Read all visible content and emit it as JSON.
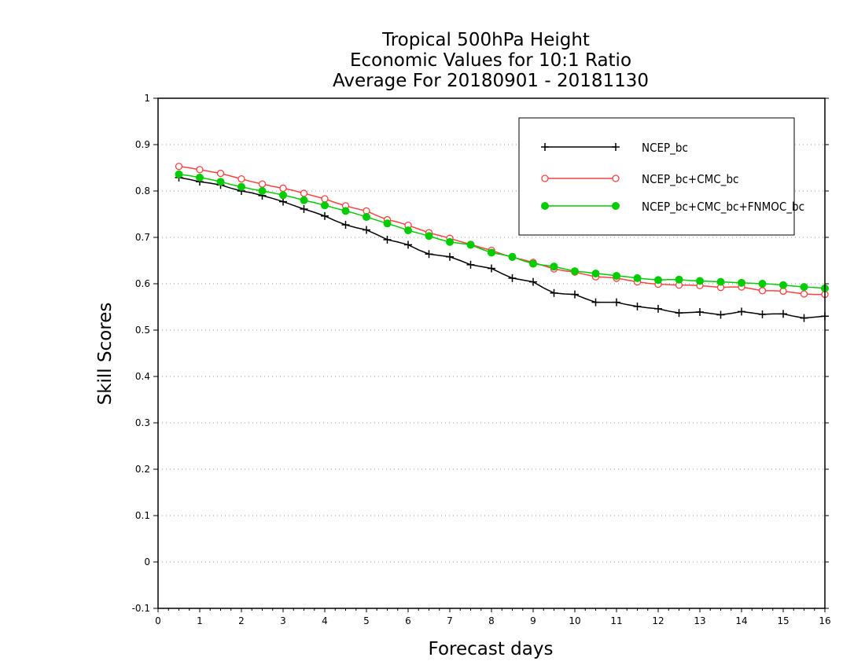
{
  "chart_data": {
    "type": "line",
    "title_lines": [
      "Tropical 500hPa Height",
      "Economic Values for 10:1 Ratio",
      "Average For 20180901 - 20181130"
    ],
    "xlabel": "Forecast days",
    "ylabel": "Skill Scores",
    "xlim": [
      0,
      16
    ],
    "ylim": [
      -0.1,
      1
    ],
    "x_ticks": [
      0,
      1,
      2,
      3,
      4,
      5,
      6,
      7,
      8,
      9,
      10,
      11,
      12,
      13,
      14,
      15,
      16
    ],
    "x_tick_labels": [
      "0",
      "1",
      "2",
      "3",
      "4",
      "5",
      "6",
      "7",
      "8",
      "9",
      "10",
      "11",
      "12",
      "13",
      "14",
      "15",
      "16"
    ],
    "y_ticks": [
      -0.1,
      0,
      0.1,
      0.2,
      0.3,
      0.4,
      0.5,
      0.6,
      0.7,
      0.8,
      0.9,
      1
    ],
    "y_tick_labels": [
      "-0.1",
      "0",
      "0.1",
      "0.2",
      "0.3",
      "0.4",
      "0.5",
      "0.6",
      "0.7",
      "0.8",
      "0.9",
      "1"
    ],
    "grid": "horizontal dotted",
    "legend_position": "top-right",
    "x": [
      0.5,
      0.75,
      1.0,
      1.25,
      1.5,
      1.75,
      2.0,
      2.25,
      2.5,
      2.75,
      3.0,
      3.25,
      3.5,
      3.75,
      4.0,
      4.25,
      4.5,
      4.75,
      5.0,
      5.25,
      5.5,
      5.75,
      6.0,
      6.25,
      6.5,
      6.75,
      7.0,
      7.25,
      7.5,
      7.75,
      8.0,
      8.25,
      8.5,
      8.75,
      9.0,
      9.25,
      9.5,
      9.75,
      10.0,
      10.25,
      10.5,
      10.75,
      11.0,
      11.25,
      11.5,
      11.75,
      12.0,
      12.25,
      12.5,
      12.75,
      13.0,
      13.25,
      13.5,
      13.75,
      14.0,
      14.25,
      14.5,
      14.75,
      15.0,
      15.25,
      15.5,
      15.75,
      16.0
    ],
    "series": [
      {
        "name": "NCEP_bc",
        "color": "#000000",
        "marker": "plus",
        "values": [
          0.829,
          0.825,
          0.82,
          0.817,
          0.813,
          0.806,
          0.8,
          0.796,
          0.79,
          0.784,
          0.777,
          0.769,
          0.761,
          0.754,
          0.746,
          0.736,
          0.727,
          0.721,
          0.716,
          0.706,
          0.695,
          0.69,
          0.684,
          0.673,
          0.664,
          0.661,
          0.658,
          0.65,
          0.641,
          0.637,
          0.633,
          0.622,
          0.612,
          0.608,
          0.604,
          0.591,
          0.58,
          0.578,
          0.577,
          0.568,
          0.56,
          0.56,
          0.56,
          0.555,
          0.551,
          0.548,
          0.546,
          0.541,
          0.537,
          0.538,
          0.539,
          0.536,
          0.533,
          0.536,
          0.54,
          0.537,
          0.534,
          0.535,
          0.535,
          0.53,
          0.526,
          0.528,
          0.53
        ]
      },
      {
        "name": "NCEP_bc+CMC_bc",
        "color": "#ff4040",
        "marker": "open-circle",
        "values": [
          0.853,
          0.85,
          0.846,
          0.842,
          0.838,
          0.832,
          0.826,
          0.82,
          0.815,
          0.81,
          0.806,
          0.801,
          0.795,
          0.789,
          0.783,
          0.775,
          0.768,
          0.762,
          0.757,
          0.747,
          0.738,
          0.733,
          0.726,
          0.718,
          0.71,
          0.704,
          0.698,
          0.691,
          0.685,
          0.678,
          0.672,
          0.664,
          0.657,
          0.652,
          0.646,
          0.639,
          0.632,
          0.628,
          0.625,
          0.62,
          0.615,
          0.614,
          0.612,
          0.608,
          0.604,
          0.601,
          0.599,
          0.598,
          0.597,
          0.597,
          0.596,
          0.594,
          0.592,
          0.593,
          0.593,
          0.589,
          0.585,
          0.585,
          0.584,
          0.581,
          0.578,
          0.577,
          0.577
        ]
      },
      {
        "name": "NCEP_bc+CMC_bc+FNMOC_bc",
        "color": "#00cc00",
        "marker": "filled-circle",
        "values": [
          0.836,
          0.833,
          0.829,
          0.825,
          0.82,
          0.814,
          0.809,
          0.804,
          0.8,
          0.796,
          0.791,
          0.786,
          0.78,
          0.775,
          0.769,
          0.763,
          0.757,
          0.751,
          0.744,
          0.737,
          0.73,
          0.723,
          0.715,
          0.709,
          0.703,
          0.696,
          0.69,
          0.687,
          0.684,
          0.675,
          0.667,
          0.663,
          0.658,
          0.65,
          0.643,
          0.64,
          0.637,
          0.632,
          0.627,
          0.625,
          0.622,
          0.62,
          0.617,
          0.615,
          0.612,
          0.61,
          0.608,
          0.609,
          0.609,
          0.607,
          0.606,
          0.605,
          0.604,
          0.603,
          0.602,
          0.601,
          0.6,
          0.599,
          0.597,
          0.595,
          0.593,
          0.592,
          0.59
        ]
      }
    ]
  }
}
